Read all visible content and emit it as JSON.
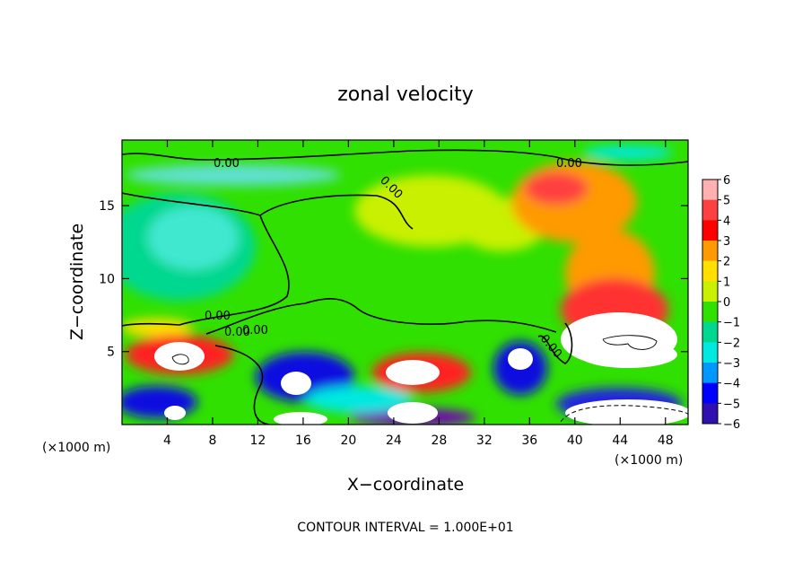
{
  "chart_data": {
    "type": "heatmap",
    "title": "zonal velocity",
    "xlabel": "X−coordinate",
    "ylabel": "Z−coordinate",
    "x_unit": "(×1000 m)",
    "y_unit": "(×1000 m)",
    "xlim": [
      0,
      50
    ],
    "ylim": [
      0,
      19.5
    ],
    "x_ticks": [
      4,
      8,
      12,
      16,
      20,
      24,
      28,
      32,
      36,
      40,
      44,
      48
    ],
    "y_ticks": [
      5,
      10,
      15
    ],
    "colorbar": {
      "ticks": [
        6,
        5,
        4,
        3,
        2,
        1,
        0,
        -1,
        -2,
        -3,
        -4,
        -5,
        -6
      ],
      "colors": [
        "#ffb0b0",
        "#ff4040",
        "#ff0000",
        "#ff9a00",
        "#ffe000",
        "#c8f000",
        "#30e000",
        "#00d890",
        "#00e8e0",
        "#0098ff",
        "#0000ff",
        "#3010b0",
        "#7000b0"
      ]
    },
    "contour_labels": [
      "0.00",
      "0.00",
      "0.00",
      "0.00",
      "0.00",
      "0.00",
      "0.00"
    ],
    "grid": false,
    "note": "CONTOUR INTERVAL = 1.000E+01"
  }
}
